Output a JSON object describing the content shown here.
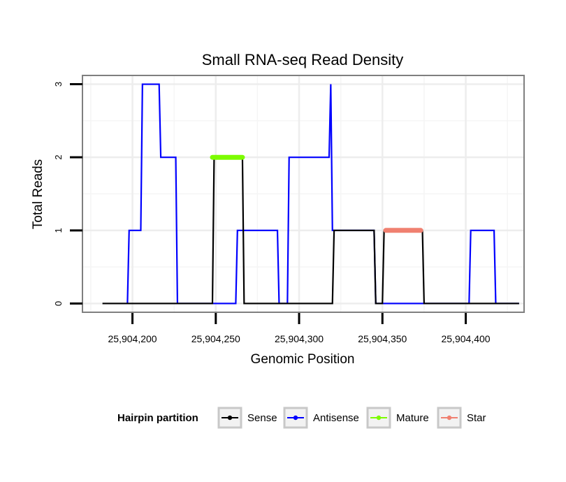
{
  "chart_data": {
    "type": "line",
    "title": "Small RNA-seq Read Density",
    "xlabel": "Genomic Position",
    "ylabel": "Total Reads",
    "xlim": [
      25904170,
      25904435
    ],
    "ylim": [
      -0.12,
      3.12
    ],
    "x_ticks": [
      {
        "value": 25904200,
        "label": "25,904,200"
      },
      {
        "value": 25904250,
        "label": "25,904,250"
      },
      {
        "value": 25904300,
        "label": "25,904,300"
      },
      {
        "value": 25904350,
        "label": "25,904,350"
      },
      {
        "value": 25904400,
        "label": "25,904,400"
      }
    ],
    "y_ticks": [
      {
        "value": 0,
        "label": "0"
      },
      {
        "value": 1,
        "label": "1"
      },
      {
        "value": 2,
        "label": "2"
      },
      {
        "value": 3,
        "label": "3"
      }
    ],
    "grid": true,
    "legend": {
      "title": "Hairpin partition",
      "position": "bottom",
      "entries": [
        {
          "name": "Sense",
          "color": "#000000"
        },
        {
          "name": "Antisense",
          "color": "#0000ff"
        },
        {
          "name": "Mature",
          "color": "#7cfc00"
        },
        {
          "name": "Star",
          "color": "#f08070"
        }
      ]
    },
    "series": [
      {
        "name": "Antisense",
        "color": "#0000ff",
        "points": [
          [
            25904197,
            0
          ],
          [
            25904198,
            1
          ],
          [
            25904205,
            1
          ],
          [
            25904206,
            3
          ],
          [
            25904216,
            3
          ],
          [
            25904217,
            2
          ],
          [
            25904226,
            2
          ],
          [
            25904227,
            0
          ],
          [
            25904262,
            0
          ],
          [
            25904263,
            1
          ],
          [
            25904287,
            1
          ],
          [
            25904288,
            0
          ],
          [
            25904293,
            0
          ],
          [
            25904294,
            2
          ],
          [
            25904318,
            2
          ],
          [
            25904319,
            3
          ],
          [
            25904320,
            1
          ],
          [
            25904345,
            1
          ],
          [
            25904346,
            0
          ],
          [
            25904402,
            0
          ],
          [
            25904403,
            1
          ],
          [
            25904417,
            1
          ],
          [
            25904418,
            0
          ],
          [
            25904432,
            0
          ]
        ]
      },
      {
        "name": "Sense",
        "color": "#000000",
        "points": [
          [
            25904182,
            0
          ],
          [
            25904248,
            0
          ],
          [
            25904249,
            2
          ],
          [
            25904266,
            2
          ],
          [
            25904267,
            0
          ],
          [
            25904320,
            0
          ],
          [
            25904321,
            1
          ],
          [
            25904345,
            1
          ],
          [
            25904346,
            0
          ],
          [
            25904350,
            0
          ],
          [
            25904351,
            1
          ],
          [
            25904374,
            1
          ],
          [
            25904375,
            0
          ],
          [
            25904432,
            0
          ]
        ]
      },
      {
        "name": "Mature",
        "color": "#7cfc00",
        "points": [
          [
            25904248,
            2
          ],
          [
            25904266,
            2
          ]
        ]
      },
      {
        "name": "Star",
        "color": "#f08070",
        "points": [
          [
            25904352,
            1
          ],
          [
            25904373,
            1
          ]
        ]
      }
    ]
  }
}
